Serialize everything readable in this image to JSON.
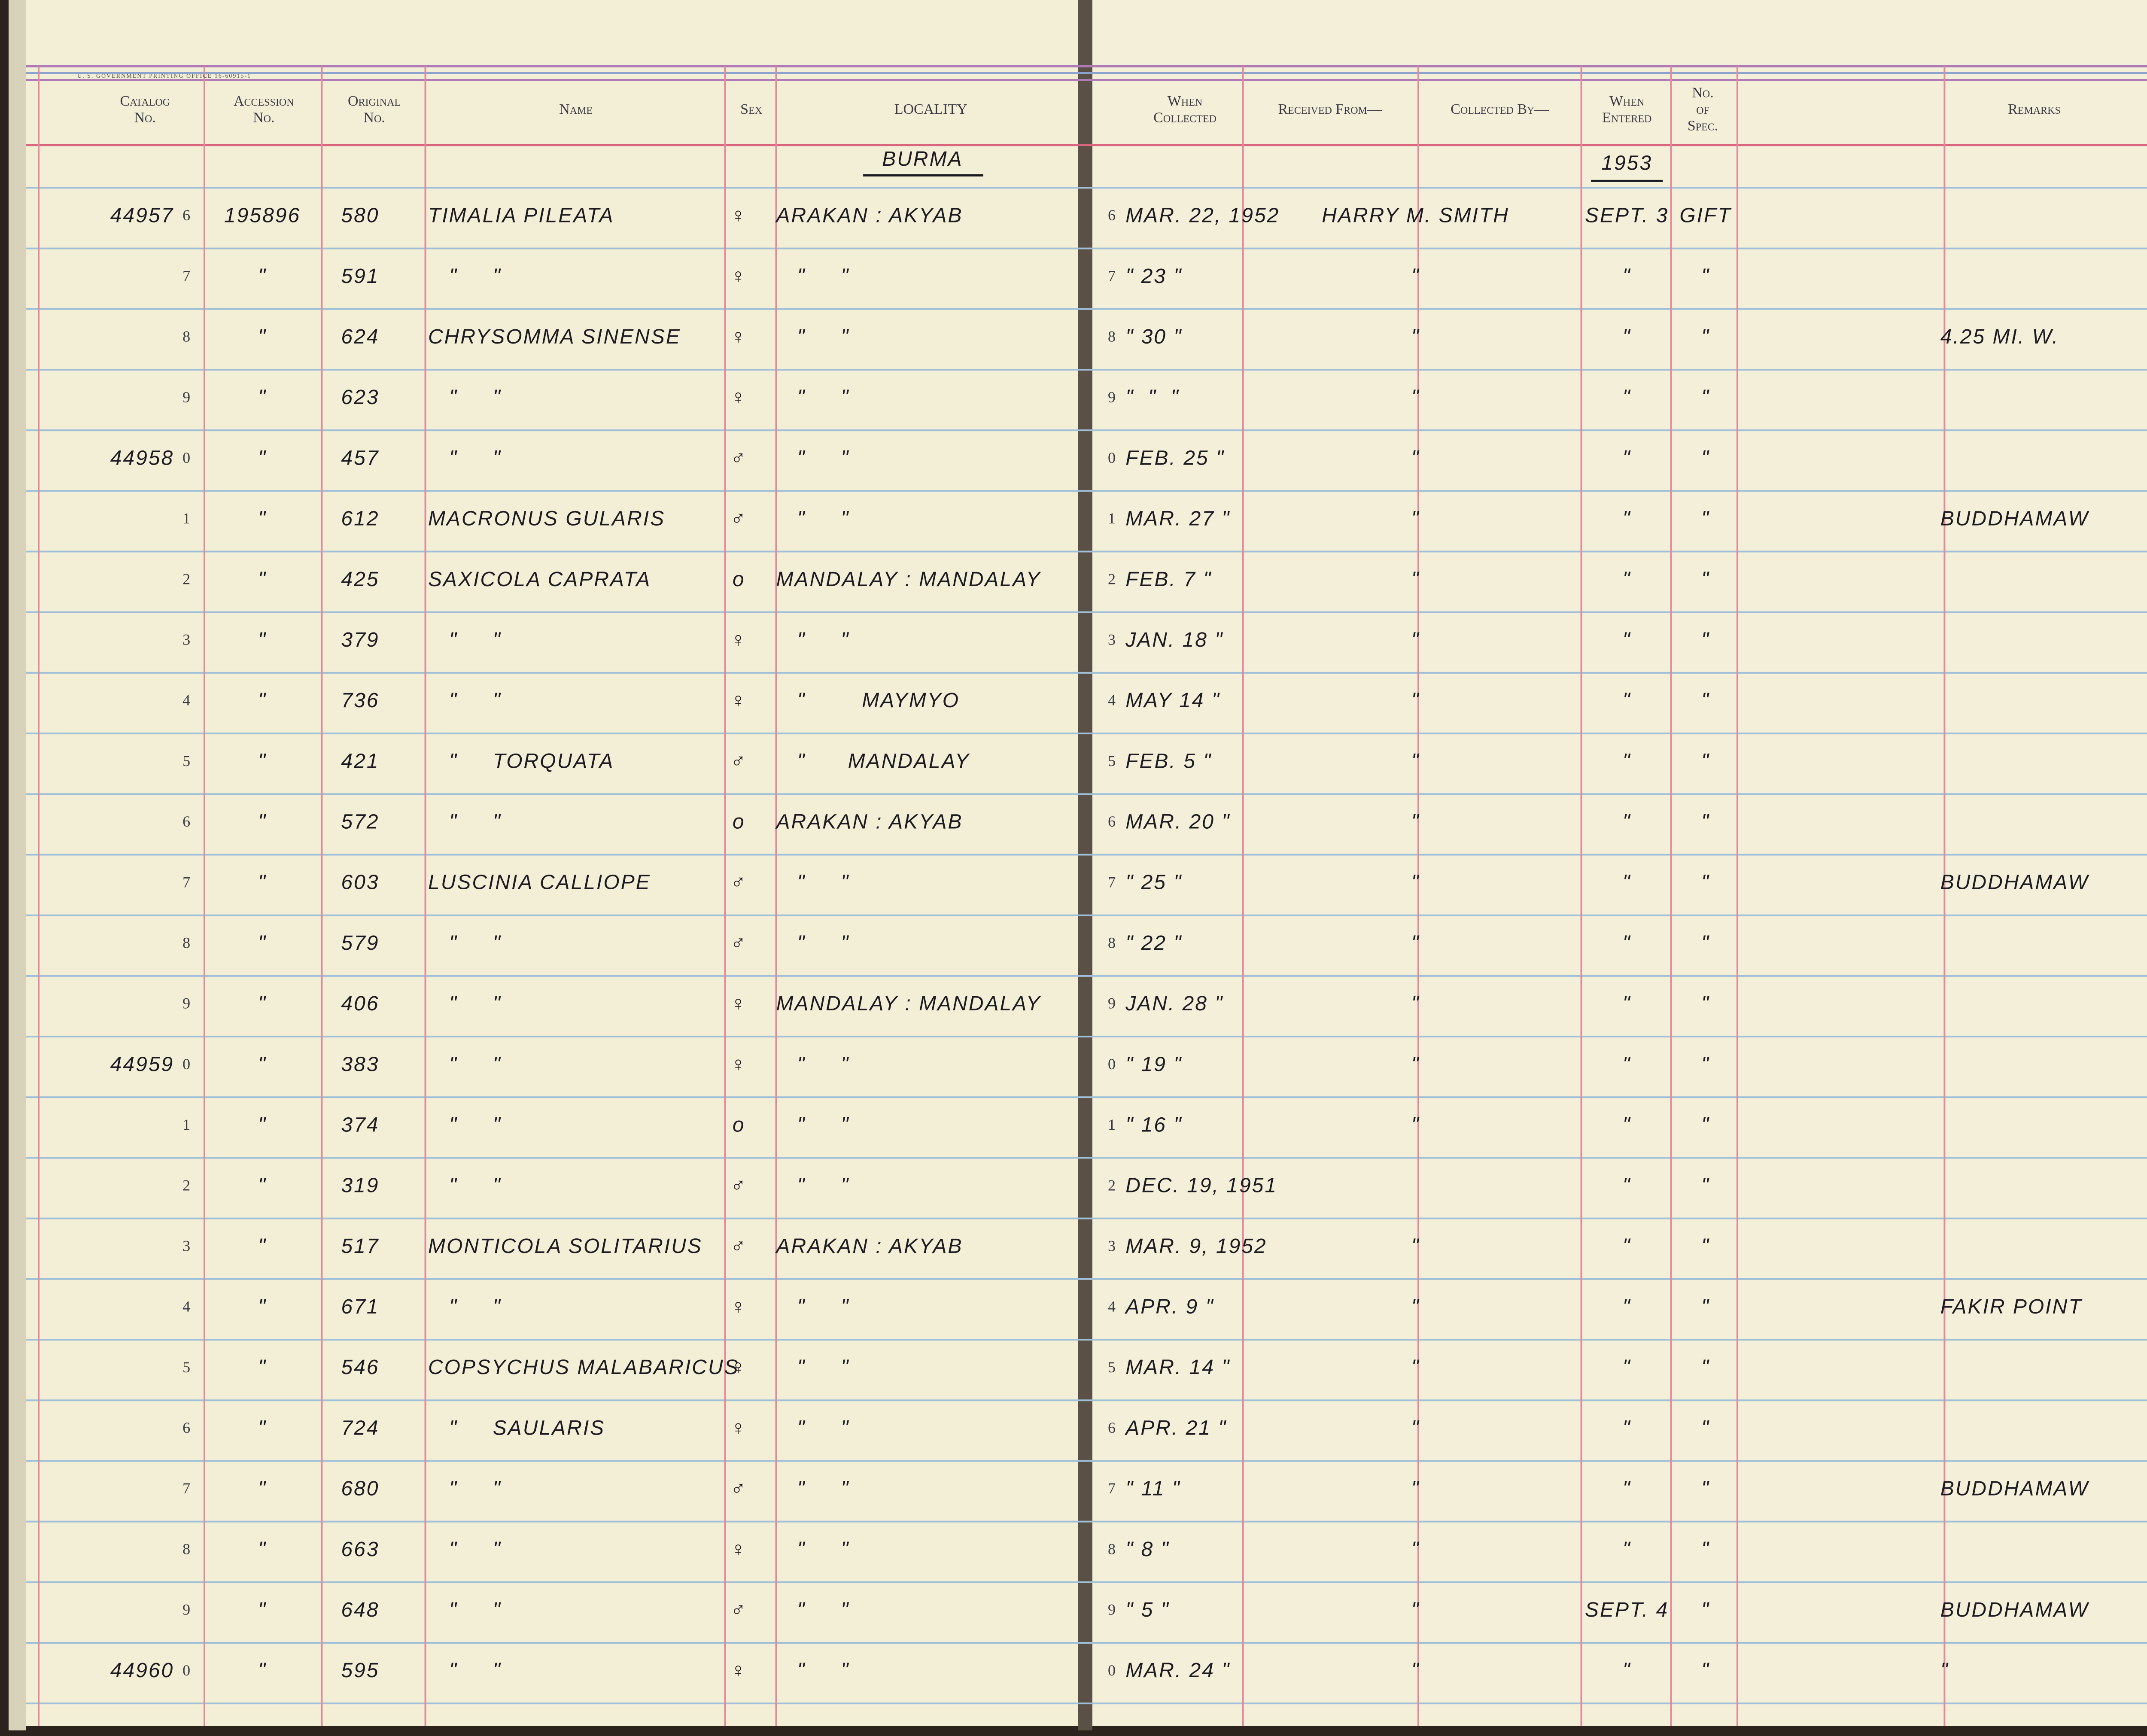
{
  "header": {
    "printer": "U. S. GOVERNMENT PRINTING OFFICE 16-60915-1",
    "columns": [
      {
        "lines": [
          "Catalog",
          "No."
        ]
      },
      {
        "lines": [
          "Accession",
          "No."
        ]
      },
      {
        "lines": [
          "Original",
          "No."
        ]
      },
      {
        "lines": [
          "Name"
        ]
      },
      {
        "lines": [
          "Sex"
        ]
      },
      {
        "lines": [
          "LOCALITY"
        ]
      },
      {
        "lines": [
          "When",
          "Collected"
        ]
      },
      {
        "lines": [
          "Received From—"
        ]
      },
      {
        "lines": [
          "Collected By—"
        ]
      },
      {
        "lines": [
          "When",
          "Entered"
        ]
      },
      {
        "lines": [
          "No.",
          "of",
          "Spec."
        ]
      },
      {
        "lines": [
          "Remarks"
        ]
      }
    ]
  },
  "section": {
    "locality": "BURMA",
    "year": "1953"
  },
  "rows": [
    {
      "catalog": "44957",
      "digit": "6",
      "accession": "195896",
      "original": "580",
      "name": "TIMALIA PILEATA",
      "sex": "♀",
      "locality": "ARAKAN : AKYAB",
      "cdigit": "6",
      "collected": "MAR. 22, 1952",
      "received": "HARRY M. SMITH",
      "entered": "SEPT. 3",
      "spec": "GIFT"
    },
    {
      "digit": "7",
      "accession": "\"",
      "original": "591",
      "name": "   \"     \"",
      "sex": "♀",
      "locality": "   \"     \"",
      "cdigit": "7",
      "collected": "\" 23 \"",
      "received": "\"",
      "entered": "\"",
      "spec": "\""
    },
    {
      "digit": "8",
      "accession": "\"",
      "original": "624",
      "name": "CHRYSOMMA SINENSE",
      "sex": "♀",
      "locality": "   \"     \"",
      "cdigit": "8",
      "collected": "\" 30 \"",
      "received": "\"",
      "entered": "\"",
      "spec": "\"",
      "remarks": "4.25 MI. W."
    },
    {
      "digit": "9",
      "accession": "\"",
      "original": "623",
      "name": "   \"     \"",
      "sex": "♀",
      "locality": "   \"     \"",
      "cdigit": "9",
      "collected": "\"  \"  \"",
      "received": "\"",
      "entered": "\"",
      "spec": "\""
    },
    {
      "catalog": "44958",
      "digit": "0",
      "accession": "\"",
      "original": "457",
      "name": "   \"     \"",
      "sex": "♂",
      "locality": "   \"     \"",
      "cdigit": "0",
      "collected": "FEB. 25 \"",
      "received": "\"",
      "entered": "\"",
      "spec": "\""
    },
    {
      "digit": "1",
      "accession": "\"",
      "original": "612",
      "name": "MACRONUS GULARIS",
      "sex": "♂",
      "locality": "   \"     \"",
      "cdigit": "1",
      "collected": "MAR. 27 \"",
      "received": "\"",
      "entered": "\"",
      "spec": "\"",
      "remarks": "BUDDHAMAW"
    },
    {
      "digit": "2",
      "accession": "\"",
      "original": "425",
      "name": "SAXICOLA CAPRATA",
      "sex": "o",
      "locality": "MANDALAY : MANDALAY",
      "cdigit": "2",
      "collected": "FEB. 7 \"",
      "received": "\"",
      "entered": "\"",
      "spec": "\""
    },
    {
      "digit": "3",
      "accession": "\"",
      "original": "379",
      "name": "   \"     \"",
      "sex": "♀",
      "locality": "   \"     \"",
      "cdigit": "3",
      "collected": "JAN. 18 \"",
      "received": "\"",
      "entered": "\"",
      "spec": "\""
    },
    {
      "digit": "4",
      "accession": "\"",
      "original": "736",
      "name": "   \"     \"",
      "sex": "♀",
      "locality": "   \"        MAYMYO",
      "cdigit": "4",
      "collected": "MAY 14 \"",
      "received": "\"",
      "entered": "\"",
      "spec": "\""
    },
    {
      "digit": "5",
      "accession": "\"",
      "original": "421",
      "name": "   \"     TORQUATA",
      "sex": "♂",
      "locality": "   \"      MANDALAY",
      "cdigit": "5",
      "collected": "FEB. 5 \"",
      "received": "\"",
      "entered": "\"",
      "spec": "\""
    },
    {
      "digit": "6",
      "accession": "\"",
      "original": "572",
      "name": "   \"     \"",
      "sex": "o",
      "locality": "ARAKAN : AKYAB",
      "cdigit": "6",
      "collected": "MAR. 20 \"",
      "received": "\"",
      "entered": "\"",
      "spec": "\""
    },
    {
      "digit": "7",
      "accession": "\"",
      "original": "603",
      "name": "LUSCINIA CALLIOPE",
      "sex": "♂",
      "locality": "   \"     \"",
      "cdigit": "7",
      "collected": "\" 25 \"",
      "received": "\"",
      "entered": "\"",
      "spec": "\"",
      "remarks": "BUDDHAMAW"
    },
    {
      "digit": "8",
      "accession": "\"",
      "original": "579",
      "name": "   \"     \"",
      "sex": "♂",
      "locality": "   \"     \"",
      "cdigit": "8",
      "collected": "\" 22 \"",
      "received": "\"",
      "entered": "\"",
      "spec": "\""
    },
    {
      "digit": "9",
      "accession": "\"",
      "original": "406",
      "name": "   \"     \"",
      "sex": "♀",
      "locality": "MANDALAY : MANDALAY",
      "cdigit": "9",
      "collected": "JAN. 28 \"",
      "received": "\"",
      "entered": "\"",
      "spec": "\""
    },
    {
      "catalog": "44959",
      "digit": "0",
      "accession": "\"",
      "original": "383",
      "name": "   \"     \"",
      "sex": "♀",
      "locality": "   \"     \"",
      "cdigit": "0",
      "collected": "\" 19 \"",
      "received": "\"",
      "entered": "\"",
      "spec": "\""
    },
    {
      "digit": "1",
      "accession": "\"",
      "original": "374",
      "name": "   \"     \"",
      "sex": "o",
      "locality": "   \"     \"",
      "cdigit": "1",
      "collected": "\" 16 \"",
      "received": "\"",
      "entered": "\"",
      "spec": "\""
    },
    {
      "digit": "2",
      "accession": "\"",
      "original": "319",
      "name": "   \"     \"",
      "sex": "♂",
      "locality": "   \"     \"",
      "cdigit": "2",
      "collected": "DEC. 19, 1951",
      "entered": "\"",
      "spec": "\""
    },
    {
      "digit": "3",
      "accession": "\"",
      "original": "517",
      "name": "MONTICOLA SOLITARIUS",
      "sex": "♂",
      "locality": "ARAKAN : AKYAB",
      "cdigit": "3",
      "collected": "MAR. 9, 1952",
      "received": "\"",
      "entered": "\"",
      "spec": "\""
    },
    {
      "digit": "4",
      "accession": "\"",
      "original": "671",
      "name": "   \"     \"",
      "sex": "♀",
      "locality": "   \"     \"",
      "cdigit": "4",
      "collected": "APR. 9 \"",
      "received": "\"",
      "entered": "\"",
      "spec": "\"",
      "remarks": "FAKIR POINT"
    },
    {
      "digit": "5",
      "accession": "\"",
      "original": "546",
      "name": "COPSYCHUS MALABARICUS",
      "sex": "♀",
      "locality": "   \"     \"",
      "cdigit": "5",
      "collected": "MAR. 14 \"",
      "received": "\"",
      "entered": "\"",
      "spec": "\""
    },
    {
      "digit": "6",
      "accession": "\"",
      "original": "724",
      "name": "   \"     SAULARIS",
      "sex": "♀",
      "locality": "   \"     \"",
      "cdigit": "6",
      "collected": "APR. 21 \"",
      "received": "\"",
      "entered": "\"",
      "spec": "\""
    },
    {
      "digit": "7",
      "accession": "\"",
      "original": "680",
      "name": "   \"     \"",
      "sex": "♂",
      "locality": "   \"     \"",
      "cdigit": "7",
      "collected": "\" 11 \"",
      "received": "\"",
      "entered": "\"",
      "spec": "\"",
      "remarks": "BUDDHAMAW"
    },
    {
      "digit": "8",
      "accession": "\"",
      "original": "663",
      "name": "   \"     \"",
      "sex": "♀",
      "locality": "   \"     \"",
      "cdigit": "8",
      "collected": "\" 8 \"",
      "received": "\"",
      "entered": "\"",
      "spec": "\""
    },
    {
      "digit": "9",
      "accession": "\"",
      "original": "648",
      "name": "   \"     \"",
      "sex": "♂",
      "locality": "   \"     \"",
      "cdigit": "9",
      "collected": "\" 5 \"",
      "received": "\"",
      "entered": "SEPT. 4",
      "spec": "\"",
      "remarks": "BUDDHAMAW"
    },
    {
      "catalog": "44960",
      "digit": "0",
      "accession": "\"",
      "original": "595",
      "name": "   \"     \"",
      "sex": "♀",
      "locality": "   \"     \"",
      "cdigit": "0",
      "collected": "MAR. 24 \"",
      "received": "\"",
      "entered": "\"",
      "spec": "\"",
      "remarks": "\""
    }
  ]
}
